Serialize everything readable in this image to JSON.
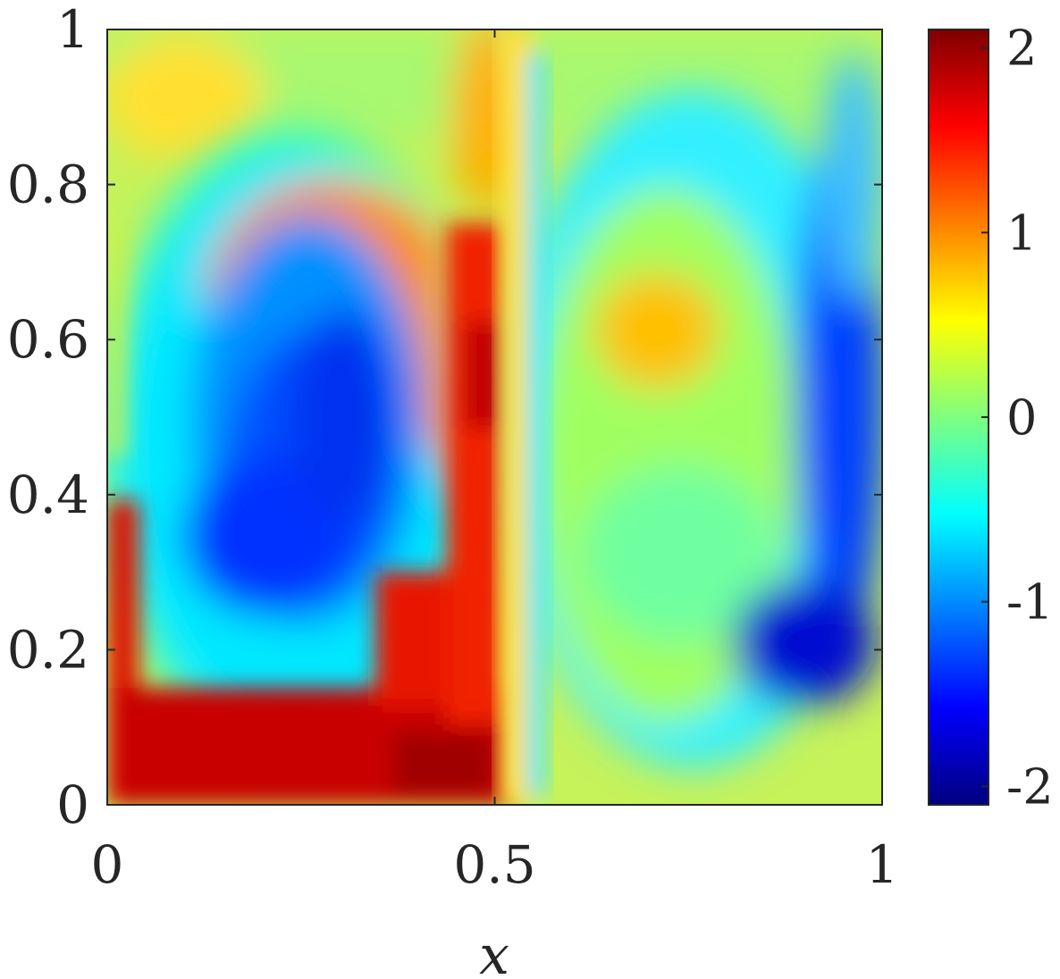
{
  "chart_data": {
    "type": "heatmap",
    "title": "",
    "xlabel": "x",
    "ylabel": "",
    "xlim": [
      0,
      1
    ],
    "ylim": [
      0,
      1
    ],
    "x_ticks": [
      {
        "value": 0,
        "label": "0"
      },
      {
        "value": 0.5,
        "label": "0.5"
      },
      {
        "value": 1,
        "label": "1"
      }
    ],
    "y_ticks": [
      {
        "value": 0,
        "label": "0"
      },
      {
        "value": 0.2,
        "label": "0.2"
      },
      {
        "value": 0.4,
        "label": "0.4"
      },
      {
        "value": 0.6,
        "label": "0.6"
      },
      {
        "value": 0.8,
        "label": "0.8"
      },
      {
        "value": 1,
        "label": "1"
      }
    ],
    "colormap": "jet",
    "colorbar": {
      "range": [
        -2.1,
        2.1
      ],
      "ticks": [
        {
          "value": 2,
          "label": "2"
        },
        {
          "value": 1,
          "label": "1"
        },
        {
          "value": 0,
          "label": "0"
        },
        {
          "value": -1,
          "label": "-1"
        },
        {
          "value": -2,
          "label": "-2"
        }
      ],
      "colors": [
        "#00007f",
        "#0000ff",
        "#007fff",
        "#00ffff",
        "#7fff7f",
        "#ffff00",
        "#ff7f00",
        "#ff0000",
        "#7f0000"
      ]
    },
    "field_features": {
      "background_value": 0.2,
      "vortices": [
        {
          "x": 0.27,
          "y": 0.42,
          "value": -1.6
        },
        {
          "x": 0.71,
          "y": 0.6,
          "value": 0.8
        }
      ],
      "bands": [
        {
          "region": "left-bottom",
          "value": 1.9
        },
        {
          "region": "center-vertical",
          "value": 1.6
        },
        {
          "region": "right-edge",
          "value": -1.8
        }
      ]
    }
  }
}
